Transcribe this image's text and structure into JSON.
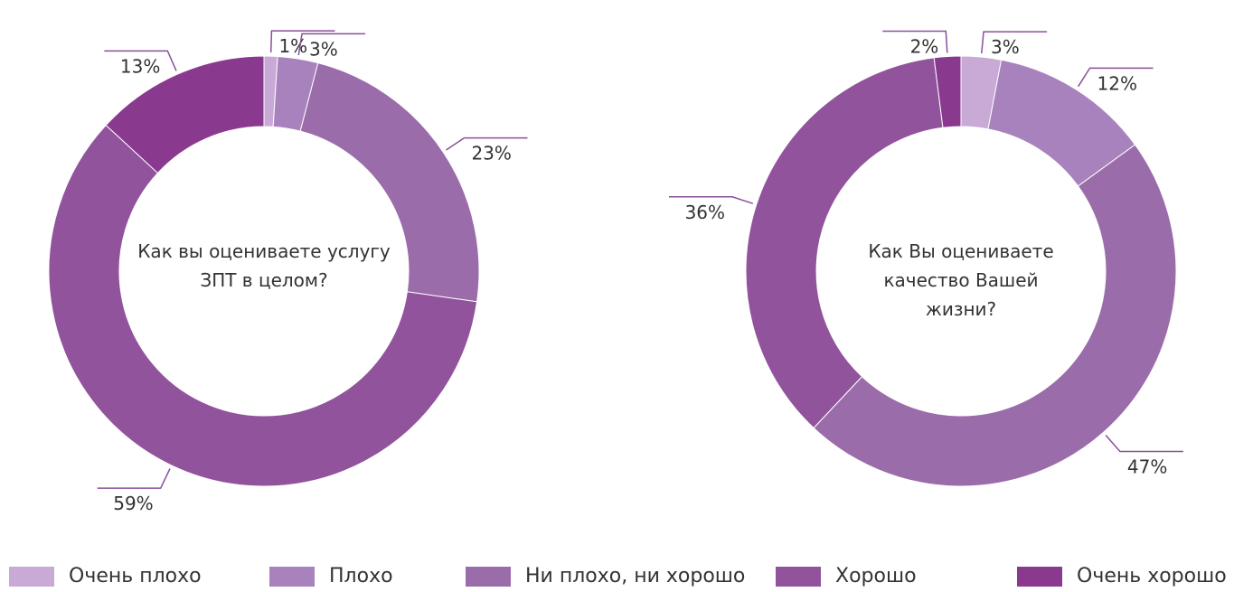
{
  "chart_data": [
    {
      "type": "donut",
      "title": "Как вы оцениваете услугу ЗПТ в целом?",
      "categories": [
        "Очень плохо",
        "Плохо",
        "Ни плохо, ни хорошо",
        "Хорошо",
        "Очень хорошо"
      ],
      "values": [
        1,
        3,
        23,
        59,
        13
      ],
      "value_labels": [
        "1%",
        "3%",
        "23%",
        "59%",
        "13%"
      ],
      "colors": [
        "#c9a9d6",
        "#a882bc",
        "#9b6caa",
        "#91539c",
        "#8a3a8e"
      ]
    },
    {
      "type": "donut",
      "title": "Как Вы оцениваете качество Вашей жизни?",
      "categories": [
        "Очень плохо",
        "Плохо",
        "Ни плохо, ни хорошо",
        "Хорошо",
        "Очень хорошо"
      ],
      "values": [
        3,
        12,
        47,
        36,
        2
      ],
      "value_labels": [
        "3%",
        "12%",
        "47%",
        "36%",
        "2%"
      ],
      "colors": [
        "#c9a9d6",
        "#a882bc",
        "#9b6caa",
        "#91539c",
        "#8a3a8e"
      ]
    }
  ]
}
